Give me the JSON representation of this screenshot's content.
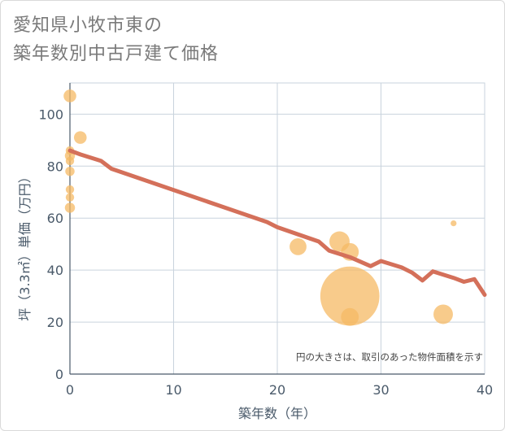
{
  "chart_data": {
    "type": "scatter",
    "title": "愛知県小牧市東の築年数別中古戸建て価格",
    "title_lines": [
      "愛知県小牧市東の",
      "築年数別中古戸建て価格"
    ],
    "xlabel": "築年数（年）",
    "ylabel": "坪（3.3㎡）単価（万円）",
    "xlim": [
      0,
      40
    ],
    "ylim": [
      0,
      112
    ],
    "x_ticks": [
      0,
      10,
      20,
      30,
      40
    ],
    "y_ticks": [
      0,
      20,
      40,
      60,
      80,
      100
    ],
    "grid": true,
    "annotation": "円の大きさは、取引のあった物件面積を示す",
    "points": [
      {
        "x": 0,
        "y": 107,
        "size": 1.5
      },
      {
        "x": 0,
        "y": 86,
        "size": 1
      },
      {
        "x": 0,
        "y": 84,
        "size": 1.2
      },
      {
        "x": 0,
        "y": 82,
        "size": 1
      },
      {
        "x": 0,
        "y": 78,
        "size": 1.1
      },
      {
        "x": 0,
        "y": 71,
        "size": 1
      },
      {
        "x": 0,
        "y": 68,
        "size": 1
      },
      {
        "x": 0,
        "y": 64,
        "size": 1.2
      },
      {
        "x": 1,
        "y": 91,
        "size": 1.5
      },
      {
        "x": 22,
        "y": 49,
        "size": 2
      },
      {
        "x": 26,
        "y": 51,
        "size": 2.4
      },
      {
        "x": 27,
        "y": 47,
        "size": 2.1
      },
      {
        "x": 27,
        "y": 30,
        "size": 7
      },
      {
        "x": 27,
        "y": 22,
        "size": 2.1
      },
      {
        "x": 36,
        "y": 23,
        "size": 2.3
      },
      {
        "x": 37,
        "y": 58,
        "size": 0.7
      }
    ],
    "trend": {
      "name": "trend",
      "x": [
        0,
        1,
        3,
        4,
        19,
        20,
        24,
        25,
        27,
        29,
        30,
        32,
        33,
        34,
        35,
        37,
        38,
        39,
        40
      ],
      "y": [
        86,
        84.5,
        82,
        79,
        58.5,
        56.5,
        51,
        47.5,
        45,
        41.5,
        43.5,
        41,
        39,
        36,
        39.5,
        37,
        35.5,
        36.5,
        30.5
      ]
    },
    "colors": {
      "bubble": "#f5b964",
      "line": "#d4705a",
      "grid": "#c9d3dd",
      "axis": "#4a5a6a"
    }
  }
}
